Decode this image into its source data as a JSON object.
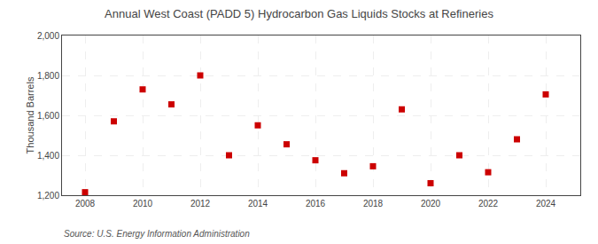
{
  "chart_data": {
    "type": "scatter",
    "title": "Annual West Coast (PADD 5) Hydrocarbon Gas Liquids Stocks at Refineries",
    "ylabel": "Thousand Barrels",
    "annotations": [
      "Source: U.S. Energy Information Administration"
    ],
    "x": [
      2008,
      2009,
      2010,
      2011,
      2012,
      2013,
      2014,
      2015,
      2016,
      2017,
      2018,
      2019,
      2020,
      2021,
      2022,
      2023,
      2024
    ],
    "values": [
      1215,
      1570,
      1730,
      1655,
      1800,
      1400,
      1550,
      1455,
      1375,
      1310,
      1345,
      1630,
      1260,
      1400,
      1315,
      1480,
      1705
    ],
    "color": "#cc0000",
    "marker": "square",
    "xlim": [
      2007.2,
      2025.2
    ],
    "xticks": [
      2008,
      2010,
      2012,
      2014,
      2016,
      2018,
      2020,
      2022,
      2024
    ],
    "ylim": [
      1200,
      2000
    ],
    "yticks": [
      {
        "value": 1200,
        "label": "1,200"
      },
      {
        "value": 1400,
        "label": "1,400"
      },
      {
        "value": 1600,
        "label": "1,600"
      },
      {
        "value": 1800,
        "label": "1,800"
      },
      {
        "value": 2000,
        "label": "2,000"
      }
    ],
    "grid": true
  }
}
